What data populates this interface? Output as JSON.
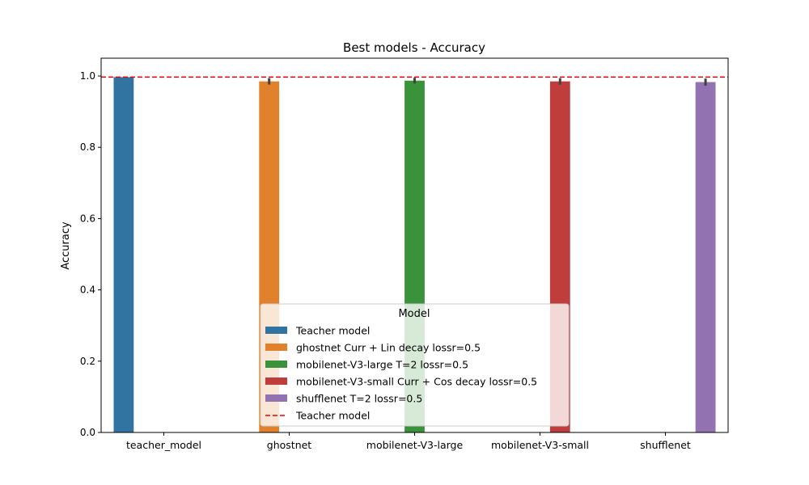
{
  "chart_data": {
    "type": "bar",
    "title": "Best models - Accuracy",
    "xlabel": "",
    "ylabel": "Accuracy",
    "ylim": [
      0,
      1.05
    ],
    "yticks": [
      0.0,
      0.2,
      0.4,
      0.6,
      0.8,
      1.0
    ],
    "ytick_labels": [
      "0.0",
      "0.2",
      "0.4",
      "0.6",
      "0.8",
      "1.0"
    ],
    "grid": false,
    "categories": [
      "teacher_model",
      "ghostnet",
      "mobilenet-V3-large",
      "mobilenet-V3-small",
      "shufflenet"
    ],
    "series": [
      {
        "name": "Teacher model",
        "color": "#3274a1",
        "values": [
          0.997,
          null,
          null,
          null,
          null
        ],
        "err": [
          null,
          null,
          null,
          null,
          null
        ]
      },
      {
        "name": "ghostnet Curr + Lin decay lossr=0.5",
        "color": "#e1812c",
        "values": [
          null,
          0.985,
          null,
          null,
          null
        ],
        "err": [
          null,
          [
            0.976,
            0.994
          ],
          null,
          null,
          null
        ]
      },
      {
        "name": "mobilenet-V3-large T=2 lossr=0.5",
        "color": "#3a923a",
        "values": [
          null,
          null,
          0.987,
          null,
          null
        ],
        "err": [
          null,
          null,
          [
            0.979,
            0.995
          ],
          null,
          null
        ]
      },
      {
        "name": "mobilenet-V3-small Curr + Cos decay lossr=0.5",
        "color": "#c03d3e",
        "values": [
          null,
          null,
          null,
          0.985,
          null
        ],
        "err": [
          null,
          null,
          null,
          [
            0.976,
            0.994
          ],
          null
        ]
      },
      {
        "name": "shufflenet T=2 lossr=0.5",
        "color": "#9372b2",
        "values": [
          null,
          null,
          null,
          null,
          0.983
        ],
        "err": [
          null,
          null,
          null,
          null,
          [
            0.973,
            0.993
          ]
        ]
      }
    ],
    "reference_line": {
      "name": "Teacher model",
      "value": 0.997,
      "color": "#e8000b",
      "style": "dashed"
    },
    "legend": {
      "title": "Model",
      "placement": "lower-center"
    }
  }
}
